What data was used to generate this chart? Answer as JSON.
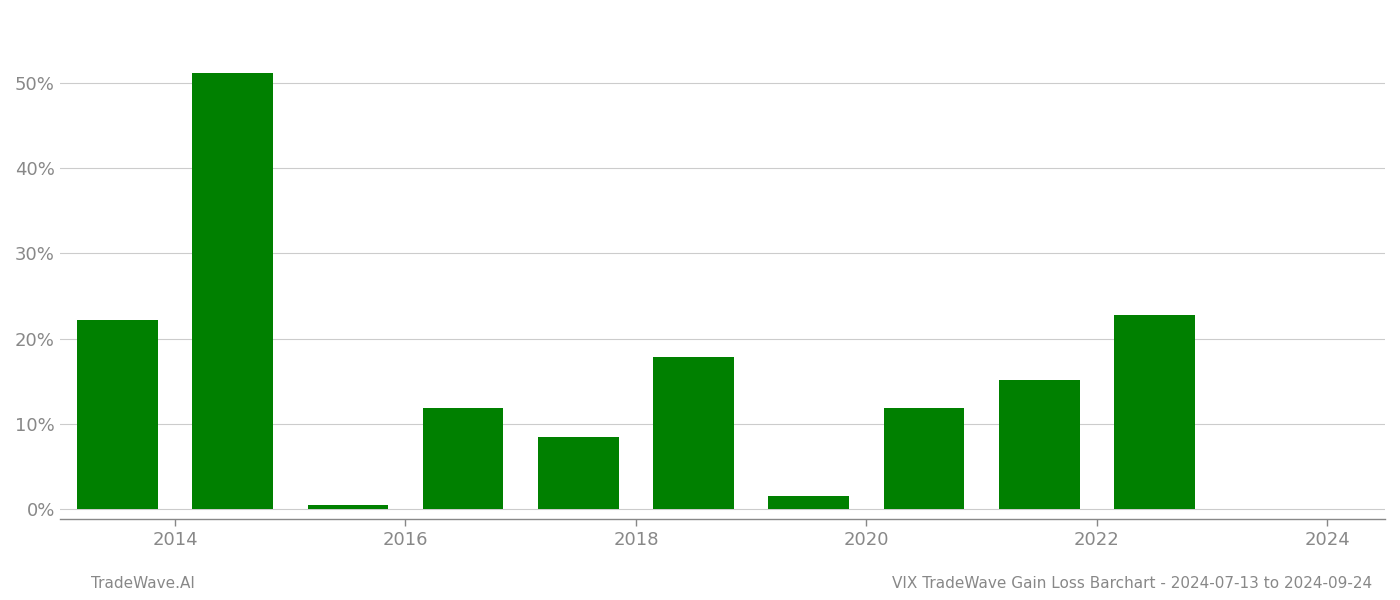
{
  "years": [
    2013.5,
    2014.5,
    2015.5,
    2016.5,
    2017.5,
    2018.5,
    2019.5,
    2020.5,
    2021.5,
    2022.5,
    2023.5
  ],
  "values": [
    0.222,
    0.512,
    0.005,
    0.118,
    0.085,
    0.178,
    0.015,
    0.118,
    0.152,
    0.228,
    0.0
  ],
  "bar_color": "#008000",
  "background_color": "#ffffff",
  "grid_color": "#cccccc",
  "axis_color": "#888888",
  "tick_color": "#888888",
  "yticks": [
    0.0,
    0.1,
    0.2,
    0.3,
    0.4,
    0.5
  ],
  "xtick_positions": [
    2014,
    2016,
    2018,
    2020,
    2022,
    2024
  ],
  "xlim": [
    2013.0,
    2024.5
  ],
  "ylim": [
    -0.012,
    0.58
  ],
  "footer_left": "TradeWave.AI",
  "footer_right": "VIX TradeWave Gain Loss Barchart - 2024-07-13 to 2024-09-24",
  "footer_fontsize": 11,
  "tick_fontsize": 13,
  "bar_width": 0.7
}
